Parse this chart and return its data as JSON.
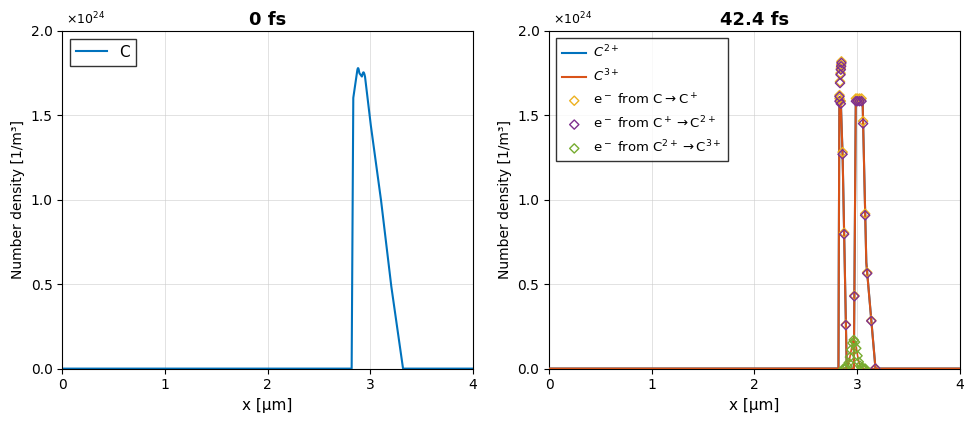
{
  "title_left": "0 fs",
  "title_right": "42.4 fs",
  "xlabel": "x [μm]",
  "ylabel": "Number density [1/m³]",
  "xlim": [
    0,
    4
  ],
  "ylim_left": [
    0,
    2.0
  ],
  "ylim_right": [
    0,
    2.0
  ],
  "yticks": [
    0,
    0.5,
    1.0,
    1.5,
    2.0
  ],
  "xticks": [
    0,
    1,
    2,
    3,
    4
  ],
  "color_C": "#0072BD",
  "color_C2p": "#0072BD",
  "color_C3p": "#D95319",
  "color_e1": "#EDB120",
  "color_e2": "#7E2F8E",
  "color_e3": "#77AC30",
  "background_color": "#FFFFFF",
  "grid_color": "#CCCCCC",
  "figsize": [
    9.75,
    4.24
  ],
  "dpi": 100
}
